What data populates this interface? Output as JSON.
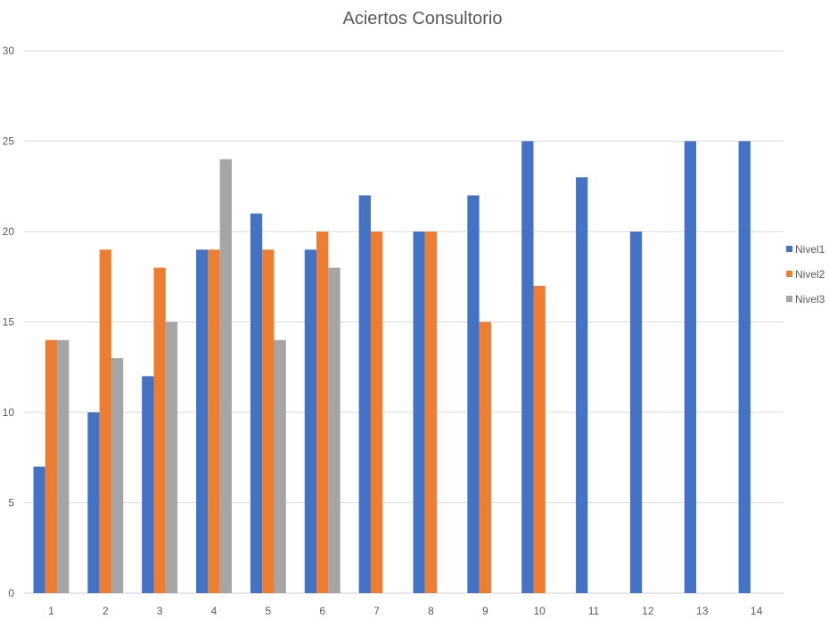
{
  "chart_data": {
    "type": "bar",
    "title": "Aciertos Consultorio",
    "xlabel": "",
    "ylabel": "",
    "categories": [
      "1",
      "2",
      "3",
      "4",
      "5",
      "6",
      "7",
      "8",
      "9",
      "10",
      "11",
      "12",
      "13",
      "14"
    ],
    "ylim": [
      0,
      30
    ],
    "yticks": [
      0,
      5,
      10,
      15,
      20,
      25,
      30
    ],
    "grid": true,
    "legend_position": "right",
    "series": [
      {
        "name": "Nivel1",
        "color": "#4472C4",
        "values": [
          7,
          10,
          12,
          19,
          21,
          19,
          22,
          20,
          22,
          25,
          23,
          20,
          25,
          25
        ]
      },
      {
        "name": "Nivel2",
        "color": "#ED7D31",
        "values": [
          14,
          19,
          18,
          19,
          19,
          20,
          20,
          20,
          15,
          17,
          null,
          null,
          null,
          null
        ]
      },
      {
        "name": "Nivel3",
        "color": "#A5A5A5",
        "values": [
          14,
          13,
          15,
          24,
          14,
          18,
          null,
          null,
          null,
          null,
          null,
          null,
          null,
          null
        ]
      }
    ]
  }
}
